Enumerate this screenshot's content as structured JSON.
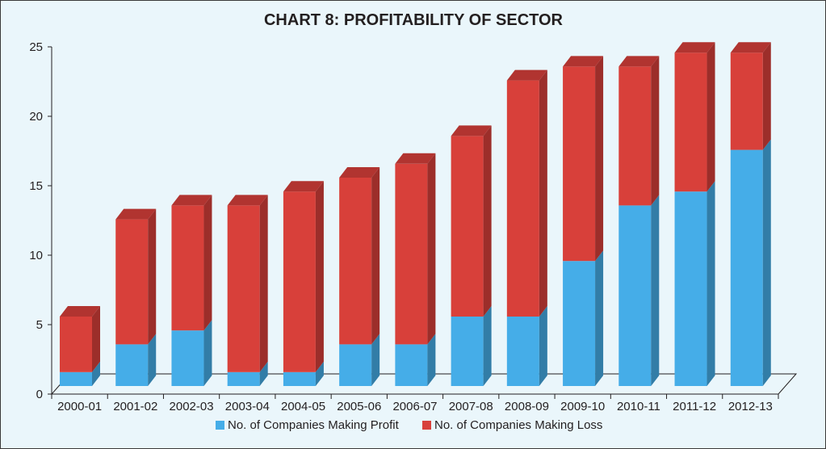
{
  "chart_data": {
    "type": "bar",
    "stacked": true,
    "three_d": true,
    "title": "CHART 8: PROFITABILITY OF SECTOR",
    "xlabel": "",
    "ylabel": "",
    "ylim": [
      0,
      25
    ],
    "yticks": [
      0,
      5,
      10,
      15,
      20,
      25
    ],
    "grid": false,
    "legend_position": "bottom",
    "categories": [
      "2000-01",
      "2001-02",
      "2002-03",
      "2003-04",
      "2004-05",
      "2005-06",
      "2006-07",
      "2007-08",
      "2008-09",
      "2009-10",
      "2010-11",
      "2011-12",
      "2012-13"
    ],
    "series": [
      {
        "name": "No. of Companies Making Profit",
        "color": "#45ade8",
        "values": [
          1,
          3,
          4,
          1,
          1,
          3,
          3,
          5,
          5,
          9,
          13,
          14,
          17
        ]
      },
      {
        "name": "No. of Companies Making Loss",
        "color": "#d8403a",
        "values": [
          4,
          9,
          9,
          12,
          13,
          12,
          13,
          13,
          17,
          14,
          10,
          10,
          7
        ]
      }
    ]
  }
}
